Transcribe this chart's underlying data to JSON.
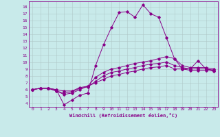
{
  "xlabel": "Windchill (Refroidissement éolien,°C)",
  "bg_color": "#c8eaea",
  "grid_color": "#b0c8c8",
  "line_color": "#880088",
  "xlim": [
    -0.5,
    23.5
  ],
  "ylim": [
    3.5,
    18.8
  ],
  "xticks": [
    0,
    1,
    2,
    3,
    4,
    5,
    6,
    7,
    8,
    9,
    10,
    11,
    12,
    13,
    14,
    15,
    16,
    17,
    18,
    19,
    20,
    21,
    22,
    23
  ],
  "yticks": [
    4,
    5,
    6,
    7,
    8,
    9,
    10,
    11,
    12,
    13,
    14,
    15,
    16,
    17,
    18
  ],
  "series": [
    [
      6.0,
      6.2,
      6.2,
      6.0,
      3.8,
      4.5,
      5.2,
      5.5,
      9.5,
      12.5,
      15.0,
      17.2,
      17.3,
      16.5,
      18.3,
      17.0,
      16.5,
      13.5,
      10.5,
      9.0,
      9.0,
      10.2,
      9.0,
      8.8
    ],
    [
      6.0,
      6.2,
      6.2,
      5.8,
      5.3,
      5.5,
      6.0,
      6.5,
      7.8,
      8.5,
      9.0,
      9.2,
      9.5,
      9.8,
      10.0,
      10.2,
      10.5,
      10.8,
      10.5,
      9.5,
      9.2,
      9.2,
      9.2,
      9.0
    ],
    [
      6.0,
      6.2,
      6.2,
      5.8,
      5.5,
      5.7,
      6.2,
      6.4,
      7.2,
      8.0,
      8.5,
      8.7,
      9.0,
      9.2,
      9.5,
      9.7,
      9.8,
      10.0,
      9.5,
      9.2,
      9.0,
      9.0,
      9.0,
      8.8
    ],
    [
      6.0,
      6.2,
      6.2,
      6.0,
      5.8,
      5.8,
      6.3,
      6.5,
      7.0,
      7.5,
      8.0,
      8.2,
      8.5,
      8.7,
      9.0,
      9.2,
      9.3,
      9.5,
      9.0,
      9.0,
      8.8,
      8.8,
      8.8,
      8.7
    ]
  ]
}
